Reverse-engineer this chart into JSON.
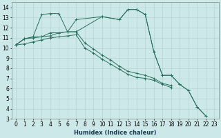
{
  "xlabel": "Humidex (Indice chaleur)",
  "ylabel": "",
  "xlim": [
    -0.5,
    23.5
  ],
  "ylim": [
    3,
    14.5
  ],
  "xticks": [
    0,
    1,
    2,
    3,
    4,
    5,
    6,
    7,
    8,
    9,
    10,
    11,
    12,
    13,
    14,
    15,
    16,
    17,
    18,
    19,
    20,
    21,
    22,
    23
  ],
  "yticks": [
    3,
    4,
    5,
    6,
    7,
    8,
    9,
    10,
    11,
    12,
    13,
    14
  ],
  "bg_color": "#cce8e8",
  "grid_color": "#b0d0d0",
  "line_color": "#2a7060",
  "series": [
    {
      "x": [
        0,
        1,
        2,
        3,
        4,
        5,
        6,
        7,
        10,
        12,
        13,
        14,
        15,
        16,
        17,
        18,
        19,
        20,
        21,
        22
      ],
      "y": [
        10.3,
        10.9,
        11.1,
        13.3,
        13.4,
        13.4,
        11.6,
        12.8,
        13.1,
        12.8,
        13.8,
        13.8,
        13.3,
        9.6,
        7.3,
        7.3,
        6.4,
        5.8,
        4.2,
        3.3
      ]
    },
    {
      "x": [
        0,
        1,
        2,
        3,
        4,
        5,
        6,
        7,
        8,
        9,
        10,
        11,
        12,
        13,
        14,
        15,
        16,
        17,
        18
      ],
      "y": [
        10.3,
        10.9,
        11.1,
        11.1,
        11.5,
        11.5,
        11.6,
        11.6,
        10.5,
        9.9,
        9.3,
        8.8,
        8.2,
        7.7,
        7.5,
        7.3,
        7.0,
        6.5,
        6.3
      ]
    },
    {
      "x": [
        0,
        1,
        2,
        3,
        4,
        5,
        6,
        7,
        8,
        9,
        10,
        11,
        12,
        13,
        14,
        15,
        16,
        17,
        18
      ],
      "y": [
        10.3,
        10.4,
        10.6,
        10.8,
        11.0,
        11.1,
        11.2,
        11.3,
        10.0,
        9.5,
        8.9,
        8.4,
        7.9,
        7.4,
        7.1,
        7.0,
        6.8,
        6.4,
        6.1
      ]
    },
    {
      "x": [
        0,
        1,
        2,
        3,
        4,
        5,
        6,
        7,
        10,
        12,
        13,
        14,
        15,
        16,
        17,
        18,
        19,
        20,
        21,
        22
      ],
      "y": [
        10.3,
        10.9,
        11.0,
        11.1,
        11.2,
        11.5,
        11.6,
        11.6,
        13.1,
        12.8,
        13.8,
        13.8,
        13.3,
        9.6,
        7.3,
        7.3,
        6.4,
        5.8,
        4.2,
        3.3
      ]
    }
  ],
  "fontsize_label": 6,
  "fontsize_tick": 5.5
}
